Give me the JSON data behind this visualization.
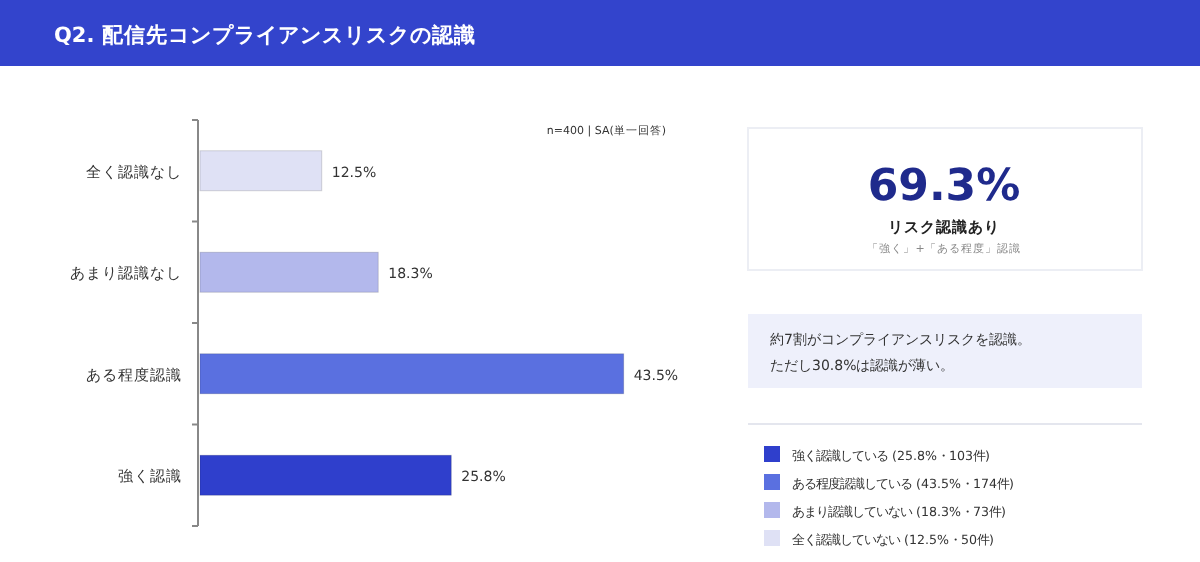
{
  "chart_data": [
    {
      "type": "bar",
      "orientation": "horizontal",
      "title": "Q2. 配信先コンプライアンスリスクの認識",
      "categories": [
        "全く認識なし",
        "あまり認識なし",
        "ある程度認識",
        "強く認識"
      ],
      "values": [
        12.5,
        18.3,
        43.5,
        25.8
      ],
      "colors": [
        "#dfe1f5",
        "#b3b8ec",
        "#5a70e0",
        "#2f3fcc"
      ],
      "value_labels": [
        "12.5%",
        "18.3%",
        "43.5%",
        "25.8%"
      ],
      "annotations": [
        "n=400 | SA(単一回答)"
      ]
    },
    {
      "type": "other",
      "annotations": [
        "69.3%",
        "リスク認識あり",
        "「強く」+「ある程度」認識",
        "約7割がコンプライアンスリスクを認識。",
        "ただし30.8%は認識が薄い。",
        "強く認識している (25.8%・103件)",
        "ある程度認識している (43.5%・174件)",
        "あまり認識していない (18.3%・73件)",
        "全く認識していない (12.5%・50件)"
      ]
    }
  ]
}
